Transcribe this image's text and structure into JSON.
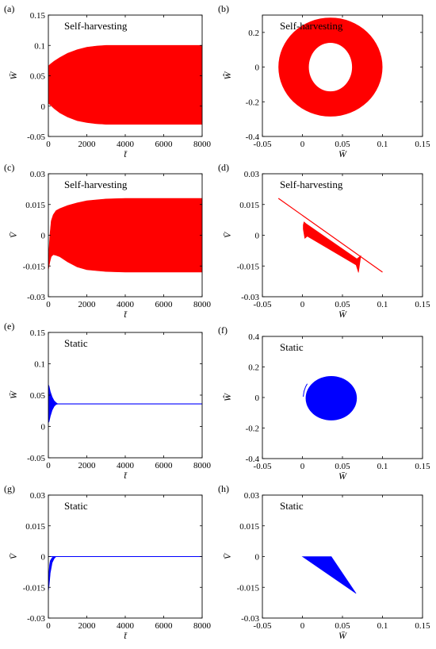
{
  "colors": {
    "self": "#ff0000",
    "static": "#0000ff",
    "axis": "#000000"
  },
  "chart_data": [
    {
      "panel": "(a)",
      "type": "area",
      "annotation": "Self-harvesting",
      "color": "#ff0000",
      "xlabel": "t̄",
      "ylabel": "W̄",
      "xlim": [
        0,
        8000
      ],
      "ylim": [
        -0.05,
        0.15
      ],
      "xticks": [
        0,
        2000,
        4000,
        6000,
        8000
      ],
      "xtick_labels": [
        "0",
        "2000",
        "4000",
        "6000",
        "8000"
      ],
      "yticks": [
        -0.05,
        0,
        0.05,
        0.1,
        0.15
      ],
      "ytick_labels": [
        "-0.05",
        "0",
        "0.05",
        "0.1",
        "0.15"
      ],
      "envelope": {
        "t": [
          0,
          100,
          300,
          600,
          1000,
          1500,
          2000,
          2500,
          3000,
          4000,
          5000,
          8000
        ],
        "upper": [
          0.066,
          0.069,
          0.074,
          0.08,
          0.087,
          0.093,
          0.097,
          0.099,
          0.1,
          0.1,
          0.1,
          0.1
        ],
        "lower": [
          0.005,
          0.002,
          -0.004,
          -0.011,
          -0.018,
          -0.024,
          -0.027,
          -0.029,
          -0.03,
          -0.03,
          -0.03,
          -0.03
        ]
      }
    },
    {
      "panel": "(b)",
      "type": "phase-ring",
      "annotation": "Self-harvesting",
      "color": "#ff0000",
      "xlabel": "W̄",
      "ylabel": "W̄̇",
      "xlim": [
        -0.05,
        0.15
      ],
      "ylim": [
        -0.4,
        0.3
      ],
      "xticks": [
        -0.05,
        0,
        0.05,
        0.1,
        0.15
      ],
      "xtick_labels": [
        "-0.05",
        "0",
        "0.05",
        "0.1",
        "0.15"
      ],
      "yticks": [
        -0.4,
        -0.2,
        0,
        0.2
      ],
      "ytick_labels": [
        "-0.4",
        "-0.2",
        "0",
        "0.2"
      ],
      "center": [
        0.035,
        0.0
      ],
      "outer_semi_axes": [
        0.065,
        0.285
      ],
      "inner_semi_axes": [
        0.027,
        0.14
      ]
    },
    {
      "panel": "(c)",
      "type": "area",
      "annotation": "Self-harvesting",
      "color": "#ff0000",
      "xlabel": "t̄",
      "ylabel": "V̄",
      "xlim": [
        0,
        8000
      ],
      "ylim": [
        -0.03,
        0.03
      ],
      "xticks": [
        0,
        2000,
        4000,
        6000,
        8000
      ],
      "xtick_labels": [
        "0",
        "2000",
        "4000",
        "6000",
        "8000"
      ],
      "yticks": [
        -0.03,
        -0.015,
        0,
        0.015,
        0.03
      ],
      "ytick_labels": [
        "-0.03",
        "-0.015",
        "0",
        "0.015",
        "0.03"
      ],
      "envelope": {
        "t": [
          0,
          80,
          150,
          250,
          400,
          600,
          1000,
          1500,
          2000,
          3000,
          4000,
          8000
        ],
        "upper": [
          -0.012,
          0.0,
          0.007,
          0.01,
          0.012,
          0.013,
          0.0145,
          0.0158,
          0.0168,
          0.0177,
          0.018,
          0.018
        ],
        "lower": [
          -0.017,
          -0.013,
          -0.0105,
          -0.0095,
          -0.0098,
          -0.0105,
          -0.013,
          -0.0155,
          -0.0168,
          -0.0177,
          -0.018,
          -0.018
        ]
      }
    },
    {
      "panel": "(d)",
      "type": "phase-band",
      "annotation": "Self-harvesting",
      "color": "#ff0000",
      "xlabel": "W̄",
      "ylabel": "V̄",
      "xlim": [
        -0.05,
        0.15
      ],
      "ylim": [
        -0.03,
        0.03
      ],
      "xticks": [
        -0.05,
        0,
        0.05,
        0.1,
        0.15
      ],
      "xtick_labels": [
        "-0.05",
        "0",
        "0.05",
        "0.1",
        "0.15"
      ],
      "yticks": [
        -0.03,
        -0.015,
        0,
        0.015,
        0.03
      ],
      "ytick_labels": [
        "-0.03",
        "-0.015",
        "0",
        "0.015",
        "0.03"
      ],
      "limit_line": {
        "w": [
          -0.03,
          0.1
        ],
        "v": [
          0.018,
          -0.018
        ]
      },
      "band": {
        "w": [
          0.001,
          0.003,
          0.006,
          0.067,
          0.07,
          0.073,
          0.068,
          0.005,
          0.002,
          0.001
        ],
        "v": [
          0.003,
          -0.0015,
          -0.0005,
          -0.0145,
          -0.0182,
          -0.01,
          -0.0115,
          0.0055,
          0.0065,
          0.005
        ]
      }
    },
    {
      "panel": "(e)",
      "type": "line",
      "annotation": "Static",
      "color": "#0000ff",
      "xlabel": "t̄",
      "ylabel": "W̄",
      "xlim": [
        0,
        8000
      ],
      "ylim": [
        -0.05,
        0.15
      ],
      "xticks": [
        0,
        2000,
        4000,
        6000,
        8000
      ],
      "xtick_labels": [
        "0",
        "2000",
        "4000",
        "6000",
        "8000"
      ],
      "yticks": [
        -0.05,
        0,
        0.05,
        0.1,
        0.15
      ],
      "ytick_labels": [
        "-0.05",
        "0",
        "0.05",
        "0.1",
        "0.15"
      ],
      "steady_value": 0.036,
      "transient": {
        "t": [
          0,
          40,
          100,
          200,
          300,
          400,
          500
        ],
        "upper": [
          0.067,
          0.064,
          0.056,
          0.047,
          0.041,
          0.038,
          0.036
        ],
        "lower": [
          0.006,
          0.008,
          0.016,
          0.026,
          0.032,
          0.035,
          0.036
        ]
      }
    },
    {
      "panel": "(f)",
      "type": "phase-disk",
      "annotation": "Static",
      "color": "#0000ff",
      "xlabel": "W̄",
      "ylabel": "W̄̇",
      "xlim": [
        -0.05,
        0.15
      ],
      "ylim": [
        -0.4,
        0.4
      ],
      "xticks": [
        -0.05,
        0,
        0.05,
        0.1,
        0.15
      ],
      "xtick_labels": [
        "-0.05",
        "0",
        "0.05",
        "0.1",
        "0.15"
      ],
      "yticks": [
        -0.4,
        -0.2,
        0,
        0.2,
        0.4
      ],
      "ytick_labels": [
        "-0.4",
        "-0.2",
        "0",
        "0.2",
        "0.4"
      ],
      "center": [
        0.036,
        -0.005
      ],
      "semi_axes": [
        0.032,
        0.145
      ],
      "tail": {
        "w": [
          0.001,
          0.002,
          0.004,
          0.006
        ],
        "v": [
          0.005,
          0.04,
          0.07,
          0.09
        ]
      }
    },
    {
      "panel": "(g)",
      "type": "line",
      "annotation": "Static",
      "color": "#0000ff",
      "xlabel": "t̄",
      "ylabel": "V̄",
      "xlim": [
        0,
        8000
      ],
      "ylim": [
        -0.03,
        0.03
      ],
      "xticks": [
        0,
        2000,
        4000,
        6000,
        8000
      ],
      "xtick_labels": [
        "0",
        "2000",
        "4000",
        "6000",
        "8000"
      ],
      "yticks": [
        -0.03,
        -0.015,
        0,
        0.015,
        0.03
      ],
      "ytick_labels": [
        "-0.03",
        "-0.015",
        "0",
        "0.015",
        "0.03"
      ],
      "steady_value": 0.0,
      "transient": {
        "t": [
          0,
          30,
          60,
          100,
          200,
          300,
          400
        ],
        "upper": [
          -0.012,
          -0.008,
          -0.004,
          -0.002,
          -0.0005,
          0.0,
          0.0
        ],
        "lower": [
          -0.017,
          -0.015,
          -0.012,
          -0.008,
          -0.003,
          -0.001,
          0.0
        ]
      }
    },
    {
      "panel": "(h)",
      "type": "phase-triangle",
      "annotation": "Static",
      "color": "#0000ff",
      "xlabel": "W̄",
      "ylabel": "V̄",
      "xlim": [
        -0.05,
        0.15
      ],
      "ylim": [
        -0.03,
        0.03
      ],
      "xticks": [
        -0.05,
        0,
        0.05,
        0.1,
        0.15
      ],
      "xtick_labels": [
        "-0.05",
        "0",
        "0.05",
        "0.1",
        "0.15"
      ],
      "yticks": [
        -0.03,
        -0.015,
        0,
        0.015,
        0.03
      ],
      "ytick_labels": [
        "-0.03",
        "-0.015",
        "0",
        "0.015",
        "0.03"
      ],
      "polygon": {
        "w": [
          0.0,
          0.036,
          0.067,
          0.0
        ],
        "v": [
          0.0,
          0.0,
          -0.018,
          0.0
        ]
      }
    }
  ]
}
